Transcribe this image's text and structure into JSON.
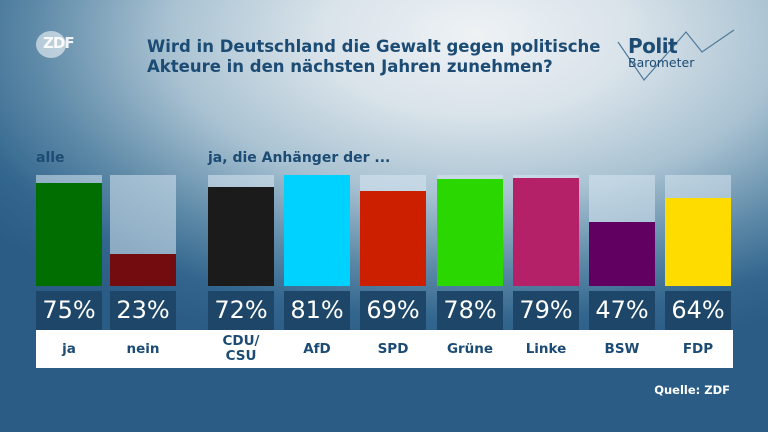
{
  "header": {
    "title_line1": "Wird in Deutschland die Gewalt gegen politische",
    "title_line2": "Akteure in den nächsten Jahren zunehmen?",
    "broadcaster_logo": "ZDF",
    "program_logo_line1": "Polit",
    "program_logo_line2": "Barometer"
  },
  "groups": {
    "all_label": "alle",
    "supporters_label": "ja, die Anhänger der ..."
  },
  "source": "Quelle: ZDF",
  "chart_data": {
    "type": "bar",
    "title": "Wird in Deutschland die Gewalt gegen politische Akteure in den nächsten Jahren zunehmen?",
    "xlabel": "",
    "ylabel": "",
    "ylim": [
      0,
      81
    ],
    "grid": false,
    "legend": "none",
    "unit": "%",
    "categories": [
      "ja",
      "nein",
      "CDU/CSU",
      "AfD",
      "SPD",
      "Grüne",
      "Linke",
      "BSW",
      "FDP"
    ],
    "category_display": [
      "ja",
      "nein",
      "CDU/\nCSU",
      "AfD",
      "SPD",
      "Grüne",
      "Linke",
      "BSW",
      "FDP"
    ],
    "values": [
      75,
      23,
      72,
      81,
      69,
      78,
      79,
      47,
      64
    ],
    "value_labels": [
      "75%",
      "23%",
      "72%",
      "81%",
      "69%",
      "78%",
      "79%",
      "47%",
      "64%"
    ],
    "colors": [
      "#006e00",
      "#730c0f",
      "#1b1b1b",
      "#00d2ff",
      "#cc1f00",
      "#2bd700",
      "#b42169",
      "#620062",
      "#ffdc00"
    ],
    "group_of_category": [
      "alle",
      "alle",
      "ja, die Anhänger der ...",
      "ja, die Anhänger der ...",
      "ja, die Anhänger der ...",
      "ja, die Anhänger der ...",
      "ja, die Anhänger der ...",
      "ja, die Anhänger der ...",
      "ja, die Anhänger der ..."
    ]
  }
}
